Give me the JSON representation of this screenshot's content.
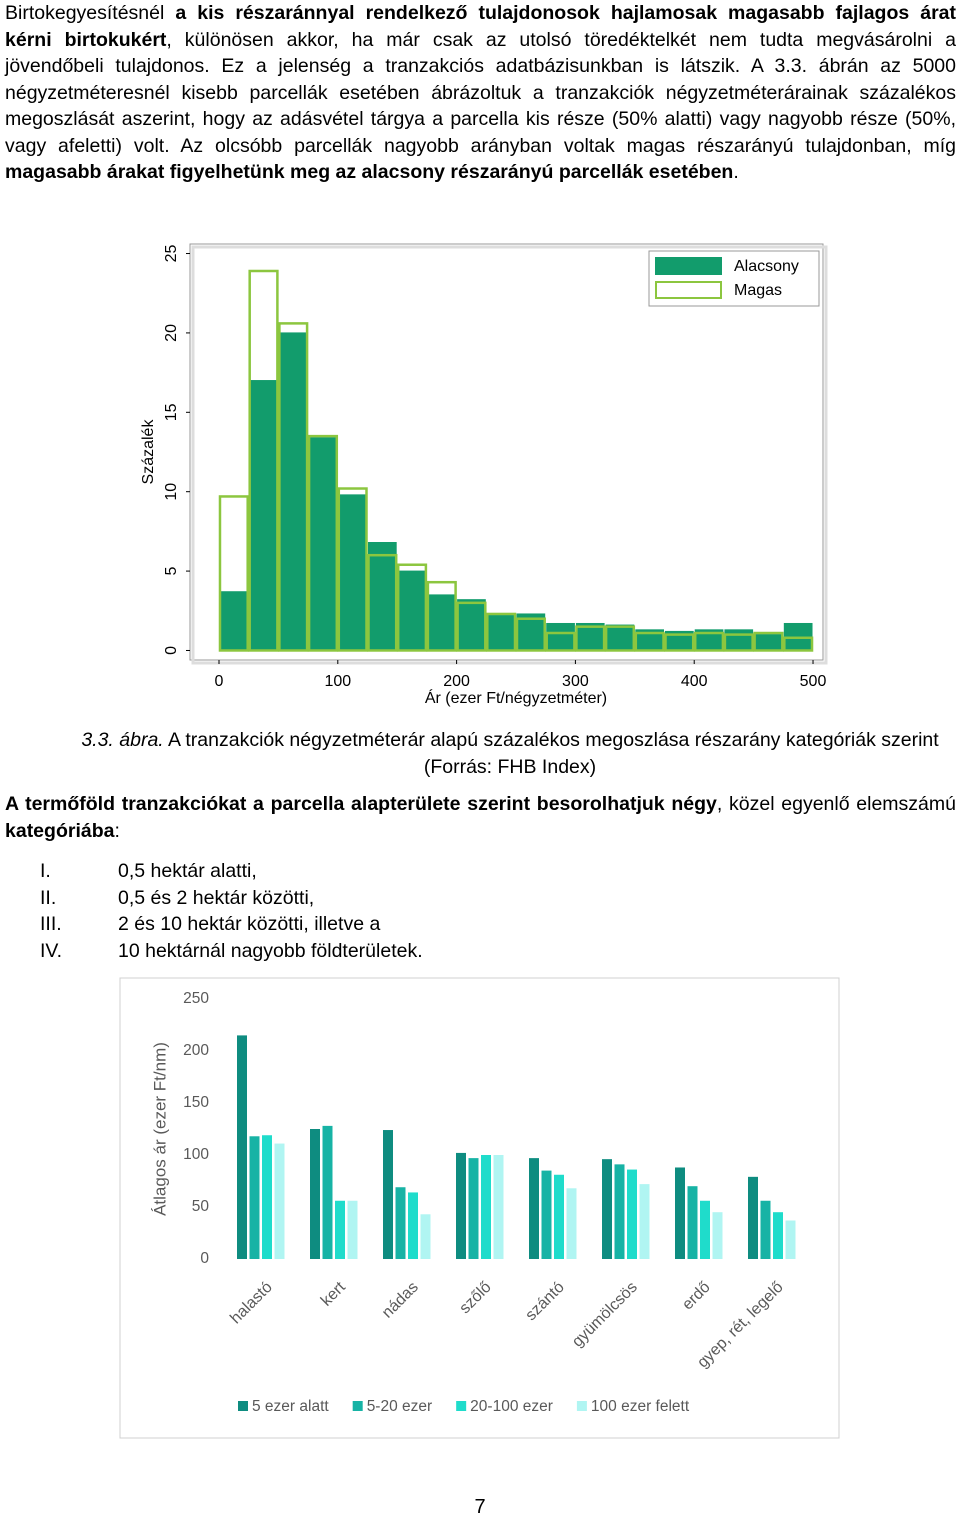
{
  "paragraphs": [
    [
      {
        "text": "Birtokegyesítésnél ",
        "bold": false
      },
      {
        "text": "a kis részaránnyal rendelkező tulajdonosok hajlamosak magasabb fajlagos árat kérni birtokukért",
        "bold": true
      },
      {
        "text": ", különösen akkor, ha már csak az utolsó töredéktelkét nem tudta megvásárolni a jövendőbeli tulajdonos. Ez a jelenség a tranzakciós adatbázisunkban is látszik. A 3.3. ábrán az 5000 négyzetméteresnél kisebb parcellák esetében ábrázoltuk a tranzakciók négyzetméterárainak százalékos megoszlását aszerint, hogy az adásvétel tárgya a parcella kis része (50% alatti) vagy nagyobb része (50%, vagy afeletti) volt. Az olcsóbb parcellák nagyobb arányban voltak magas részarányú tulajdonban, míg ",
        "bold": false
      },
      {
        "text": "magasabb árakat figyelhetünk meg az alacsony részarányú parcellák esetében",
        "bold": true
      },
      {
        "text": ".",
        "bold": false
      }
    ],
    [
      {
        "text": "A termőföld tranzakciókat a parcella alapterülete szerint besorolhatjuk négy",
        "bold": true
      },
      {
        "text": ", közel egyenlő elemszámú ",
        "bold": false
      },
      {
        "text": "kategóriába",
        "bold": true
      },
      {
        "text": ":",
        "bold": false
      }
    ]
  ],
  "caption": {
    "label": "3.3. ábra.",
    "text": " A tranzakciók négyzetméterár alapú százalékos megoszlása részarány kategóriák szerint (Forrás: FHB Index)"
  },
  "list": [
    {
      "num": "I.",
      "text": "0,5 hektár alatti,"
    },
    {
      "num": "II.",
      "text": "0,5 és 2 hektár közötti,"
    },
    {
      "num": "III.",
      "text": "2 és 10 hektár közötti, illetve a"
    },
    {
      "num": "IV.",
      "text": "10 hektárnál nagyobb földterületek."
    }
  ],
  "page_number": "7",
  "chart_data": [
    {
      "type": "histogram",
      "x_label": "Ár (ezer Ft/négyzetméter)",
      "y_label": "Százalék",
      "bins": [
        0,
        25,
        50,
        75,
        100,
        125,
        150,
        175,
        200,
        225,
        250,
        275,
        300,
        325,
        350,
        375,
        400,
        425,
        450,
        475,
        500
      ],
      "series": [
        {
          "name": "Alacsony",
          "color": "#129c6c",
          "style": "filled",
          "values": [
            3.7,
            17.0,
            20.0,
            13.4,
            9.8,
            6.8,
            5.0,
            3.5,
            3.2,
            2.2,
            2.3,
            1.7,
            1.7,
            1.6,
            1.3,
            1.2,
            1.3,
            1.3,
            1.0,
            1.7
          ]
        },
        {
          "name": "Magas",
          "color": "#8cc63f",
          "style": "outline",
          "values": [
            9.7,
            23.9,
            20.6,
            13.5,
            10.2,
            6.0,
            5.4,
            4.3,
            3.0,
            2.3,
            2.0,
            1.1,
            1.5,
            1.5,
            1.1,
            1.0,
            1.1,
            1.0,
            1.1,
            0.8
          ]
        }
      ],
      "xlim": [
        -24.4,
        508.4
      ],
      "xticks": [
        0,
        100,
        200,
        300,
        400,
        500
      ],
      "ylim": [
        -0.6,
        25.6
      ],
      "yticks": [
        0,
        5,
        10,
        15,
        20,
        25
      ],
      "legend": "top-right"
    },
    {
      "type": "bar",
      "y_label": "Átlagos ár (ezer Ft/nm)",
      "categories": [
        "halastó",
        "kert",
        "nádas",
        "szőlő",
        "szántó",
        "gyümölcsös",
        "erdő",
        "gyep, rét, legelő"
      ],
      "series": [
        {
          "name": "5 ezer alatt",
          "color": "#0e8c80",
          "values": [
            215,
            125,
            124,
            102,
            97,
            96,
            88,
            79
          ]
        },
        {
          "name": "5-20 ezer",
          "color": "#17b3a5",
          "values": [
            118,
            128,
            69,
            97,
            85,
            91,
            70,
            56
          ]
        },
        {
          "name": "20-100 ezer",
          "color": "#1fdccb",
          "values": [
            119,
            56,
            64,
            100,
            81,
            86,
            56,
            45
          ]
        },
        {
          "name": "100 ezer felett",
          "color": "#b0f5f2",
          "values": [
            111,
            56,
            43,
            100,
            68,
            72,
            45,
            37
          ]
        }
      ],
      "ylim": [
        0,
        250
      ],
      "yticks": [
        0,
        50,
        100,
        150,
        200,
        250
      ],
      "grid": false,
      "legend": "bottom"
    }
  ]
}
